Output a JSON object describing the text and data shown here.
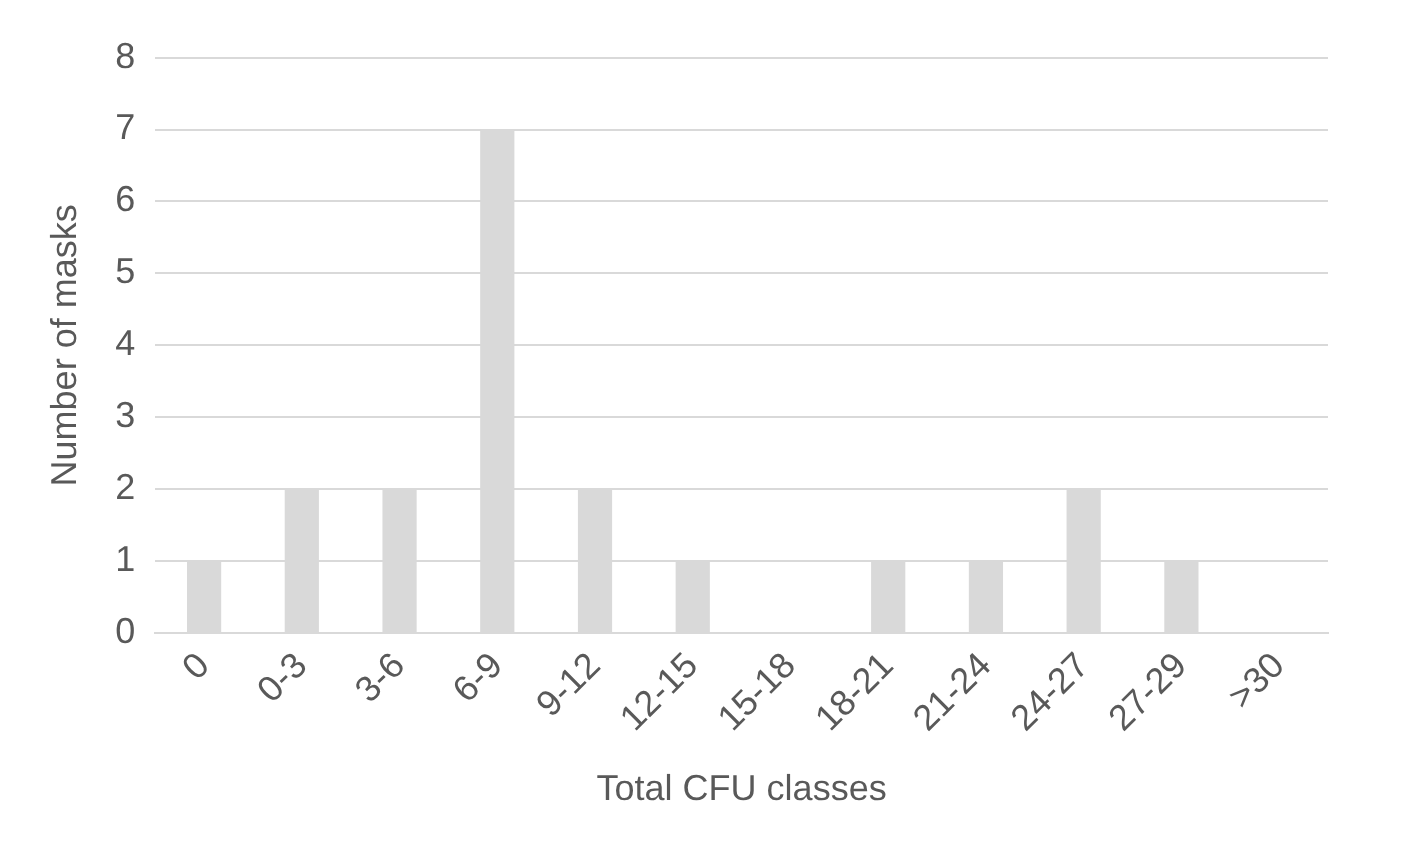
{
  "chart_data": {
    "type": "bar",
    "xlabel": "Total CFU classes",
    "ylabel": "Number of masks",
    "categories": [
      "0",
      "0-3",
      "3-6",
      "6-9",
      "9-12",
      "12-15",
      "15-18",
      "18-21",
      "21-24",
      "24-27",
      "27-29",
      ">30"
    ],
    "values": [
      1,
      2,
      2,
      7,
      2,
      1,
      0,
      1,
      1,
      2,
      1,
      0
    ],
    "color": "#d9d9d9",
    "ylim": [
      0,
      8
    ],
    "yticks": [
      0,
      1,
      2,
      3,
      4,
      5,
      6,
      7,
      8
    ],
    "grid": "y",
    "legend": false
  }
}
